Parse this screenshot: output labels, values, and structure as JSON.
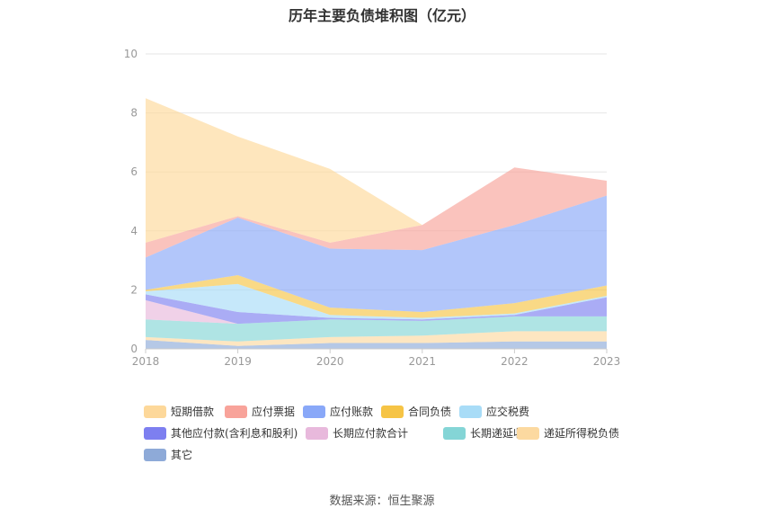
{
  "chart_data": {
    "type": "area",
    "title": "历年主要负债堆积图（亿元）",
    "x": [
      "2018",
      "2019",
      "2020",
      "2021",
      "2022",
      "2023"
    ],
    "ylim": [
      0,
      10
    ],
    "yticks": [
      "0",
      "2",
      "4",
      "6",
      "8",
      "10"
    ],
    "stacked": true,
    "grid": true,
    "legend_position": "bottom",
    "series": [
      {
        "name": "其它",
        "color": "#8eaad8",
        "values": [
          0.3,
          0.1,
          0.2,
          0.2,
          0.25,
          0.25
        ]
      },
      {
        "name": "递延所得税负债",
        "color": "#fcd9a0",
        "values": [
          0.1,
          0.15,
          0.2,
          0.25,
          0.35,
          0.35
        ]
      },
      {
        "name": "长期递延收益",
        "color": "#84d5d6",
        "values": [
          0.6,
          0.6,
          0.6,
          0.5,
          0.5,
          0.5
        ]
      },
      {
        "name": "长期应付款合计",
        "color": "#e8b9dc",
        "values": [
          0.65,
          0.0,
          0.0,
          0.0,
          0.0,
          0.0
        ]
      },
      {
        "name": "其他应付款(含利息和股利)",
        "color": "#7d7ff0",
        "values": [
          0.2,
          0.4,
          0.05,
          0.05,
          0.05,
          0.65
        ]
      },
      {
        "name": "应交税费",
        "color": "#a8dcf7",
        "values": [
          0.1,
          0.95,
          0.1,
          0.05,
          0.05,
          0.05
        ]
      },
      {
        "name": "合同负债",
        "color": "#f6c445",
        "values": [
          0.05,
          0.3,
          0.25,
          0.2,
          0.35,
          0.35
        ]
      },
      {
        "name": "应付账款",
        "color": "#89a8f8",
        "values": [
          1.1,
          1.95,
          2.0,
          2.1,
          2.65,
          3.05
        ]
      },
      {
        "name": "应付票据",
        "color": "#f8a39a",
        "values": [
          0.5,
          0.05,
          0.2,
          0.85,
          1.95,
          0.5
        ]
      },
      {
        "name": "短期借款",
        "color": "#fdd89a",
        "values": [
          4.9,
          2.7,
          2.5,
          0.0,
          0.0,
          0.0
        ]
      }
    ]
  },
  "legend_items": [
    {
      "label": "短期借款",
      "color": "#fdd89a"
    },
    {
      "label": "应付票据",
      "color": "#f8a39a"
    },
    {
      "label": "应付账款",
      "color": "#89a8f8"
    },
    {
      "label": "合同负债",
      "color": "#f6c445"
    },
    {
      "label": "应交税费",
      "color": "#a8dcf7"
    },
    {
      "label": "其他应付款(含利息和股利)",
      "color": "#7d7ff0"
    },
    {
      "label": "长期应付款合计",
      "color": "#e8b9dc"
    },
    {
      "label": "长期递延收益",
      "color": "#84d5d6"
    },
    {
      "label": "递延所得税负债",
      "color": "#fcd9a0"
    },
    {
      "label": "其它",
      "color": "#8eaad8"
    }
  ],
  "source_text": "数据来源：恒生聚源"
}
